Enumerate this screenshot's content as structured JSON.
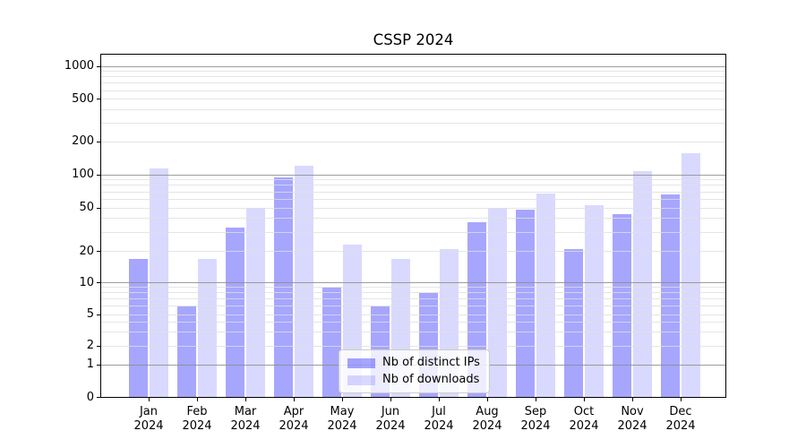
{
  "chart_data": {
    "type": "bar",
    "title": "CSSP 2024",
    "categories": [
      "Jan",
      "Feb",
      "Mar",
      "Apr",
      "May",
      "Jun",
      "Jul",
      "Aug",
      "Sep",
      "Oct",
      "Nov",
      "Dec"
    ],
    "category_year": "2024",
    "series": [
      {
        "name": "Nb of distinct IPs",
        "color": "rgba(0,0,255,0.35)",
        "values": [
          17,
          6,
          33,
          94,
          9,
          6,
          8,
          37,
          48,
          21,
          44,
          66
        ]
      },
      {
        "name": "Nb of downloads",
        "color": "rgba(0,0,255,0.15)",
        "values": [
          114,
          17,
          50,
          120,
          23,
          17,
          21,
          50,
          68,
          53,
          108,
          158
        ]
      }
    ],
    "yscale": "symlog",
    "ytick_labels": [
      0,
      1,
      2,
      5,
      10,
      20,
      50,
      100,
      200,
      500,
      1000
    ],
    "ylim": [
      0,
      1300
    ],
    "grid": "both",
    "legend": {
      "labels": [
        "Nb of distinct IPs",
        "Nb of downloads"
      ],
      "location": "lower center inside"
    }
  }
}
